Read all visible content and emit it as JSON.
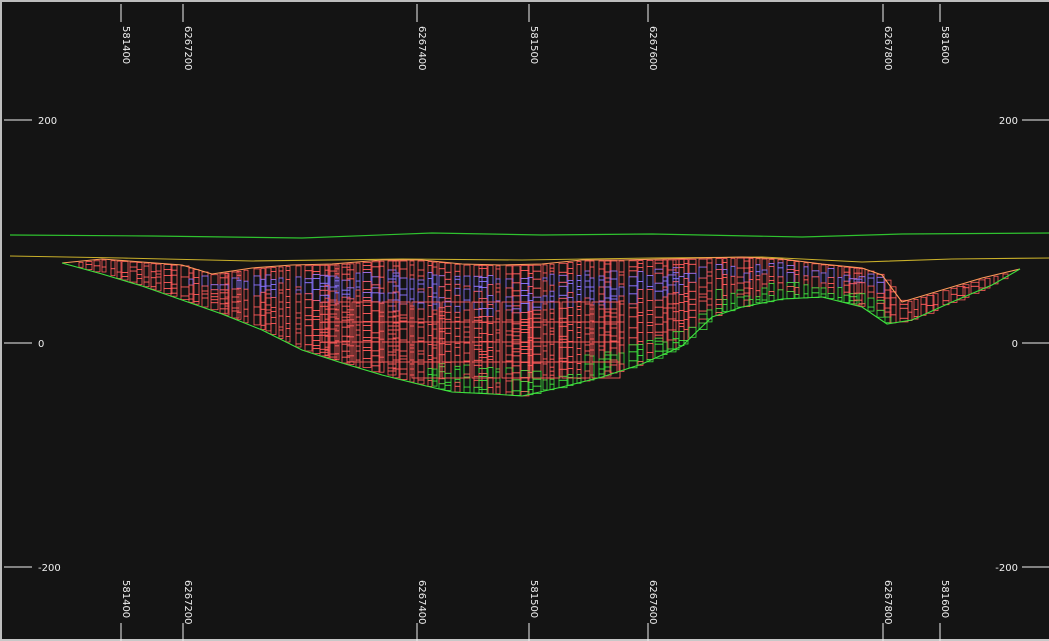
{
  "section": {
    "easting_ticks": [
      "581400",
      "581500",
      "581600"
    ],
    "northing_ticks": [
      "6267200",
      "6267400",
      "6267600",
      "6267800"
    ],
    "elevation_ticks": [
      "200",
      "0",
      "-200"
    ]
  },
  "colors": {
    "background": "#141414",
    "topography": "#2fc22f",
    "water_surface": "#c9b02a",
    "block_primary": "#ff5a5a",
    "block_secondary": "#8a73ff",
    "block_lower": "#3ee23e",
    "outline": "#ff9a5a"
  }
}
